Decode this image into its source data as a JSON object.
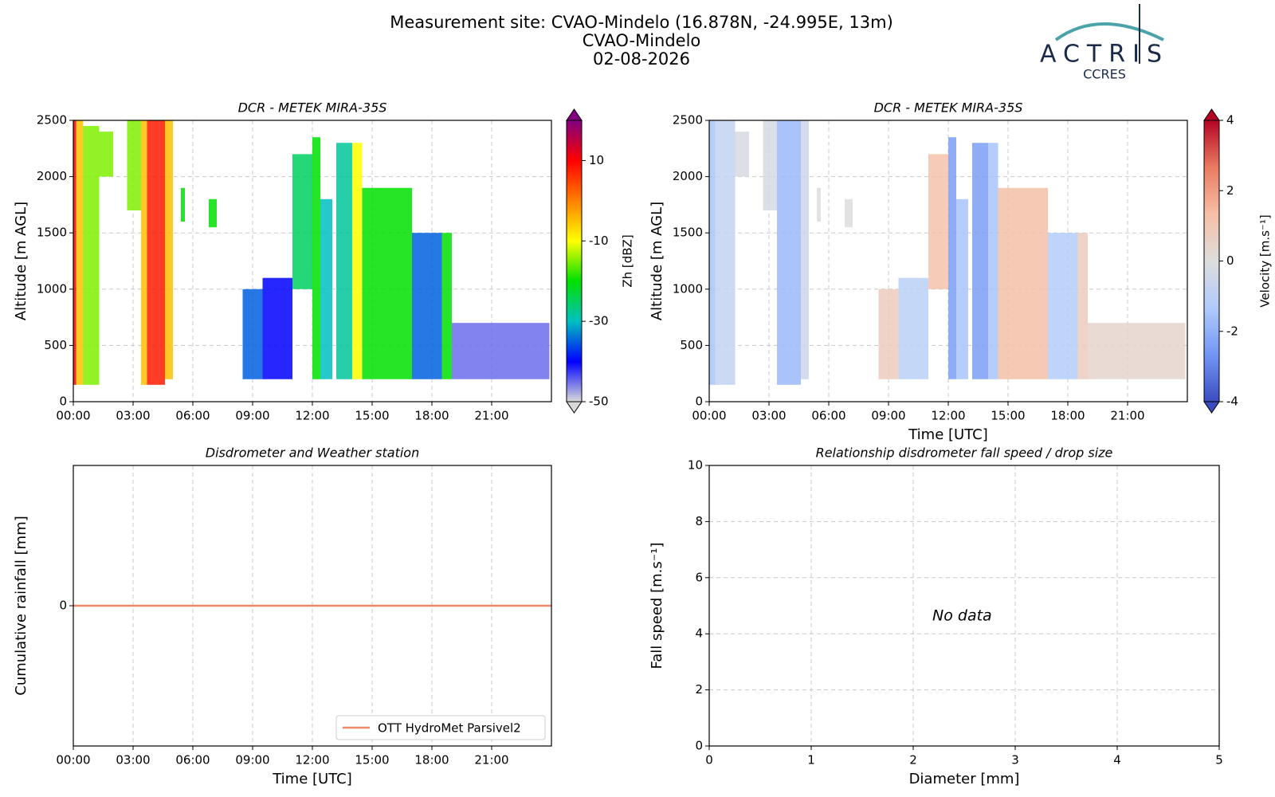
{
  "header": {
    "title": [
      "Measurement site: CVAO-Mindelo (16.878N, -24.995E, 13m)",
      "CVAO-Mindelo",
      "02-08-2026"
    ],
    "logo": "ACTRIS",
    "logo_subtitle": "CCRES"
  },
  "chart_data": [
    {
      "type": "heatmap",
      "title": "DCR - METEK MIRA-35S",
      "y_label": "Altitude [m AGL]",
      "xlim": [
        0,
        24
      ],
      "xticks": [
        {
          "value": 0,
          "label": "00:00"
        },
        {
          "value": 3,
          "label": "03:00"
        },
        {
          "value": 6,
          "label": "06:00"
        },
        {
          "value": 9,
          "label": "09:00"
        },
        {
          "value": 12,
          "label": "12:00"
        },
        {
          "value": 15,
          "label": "15:00"
        },
        {
          "value": 18,
          "label": "18:00"
        },
        {
          "value": 21,
          "label": "21:00"
        }
      ],
      "ylim": [
        0,
        2500
      ],
      "yticks": [
        0,
        500,
        1000,
        1500,
        2000,
        2500
      ],
      "grid": true,
      "colorbar_label": "Zh [dBZ]",
      "zlim": [
        -50,
        20
      ],
      "zticks": [
        -50,
        -30,
        -10,
        10
      ],
      "colormap": [
        "#d9d9d9",
        "#0000ff",
        "#00c0c0",
        "#00e000",
        "#ffff00",
        "#ff8000",
        "#ff0000",
        "#800080"
      ],
      "cells": [
        [
          0,
          0.15,
          150,
          2500,
          10
        ],
        [
          0.15,
          0.5,
          150,
          2500,
          -5
        ],
        [
          0.5,
          1.3,
          150,
          2450,
          -15
        ],
        [
          1.3,
          2,
          2000,
          2400,
          -15
        ],
        [
          2.7,
          3.4,
          1700,
          2500,
          -15
        ],
        [
          3.4,
          3.7,
          150,
          2500,
          -5
        ],
        [
          3.7,
          4.6,
          150,
          2500,
          8
        ],
        [
          4.6,
          5,
          200,
          2500,
          -5
        ],
        [
          5.4,
          5.6,
          1600,
          1900,
          -20
        ],
        [
          6.8,
          7.2,
          1550,
          1800,
          -20
        ],
        [
          8.5,
          9.5,
          200,
          1000,
          -35
        ],
        [
          9.5,
          11,
          200,
          1100,
          -40
        ],
        [
          11,
          12,
          1000,
          2200,
          -25
        ],
        [
          12,
          12.4,
          200,
          2350,
          -20
        ],
        [
          12.4,
          13,
          200,
          1800,
          -30
        ],
        [
          13.2,
          14,
          200,
          2300,
          -28
        ],
        [
          14,
          14.5,
          200,
          2300,
          -10
        ],
        [
          14.5,
          17,
          200,
          1900,
          -20
        ],
        [
          17,
          18.5,
          200,
          1500,
          -35
        ],
        [
          18.5,
          19,
          200,
          1500,
          -20
        ],
        [
          19,
          23.9,
          200,
          700,
          -45
        ]
      ]
    },
    {
      "type": "heatmap",
      "title": "DCR - METEK MIRA-35S",
      "x_label": "Time [UTC]",
      "y_label": "Altitude [m AGL]",
      "xlim": [
        0,
        24
      ],
      "xticks": [
        {
          "value": 0,
          "label": "00:00"
        },
        {
          "value": 3,
          "label": "03:00"
        },
        {
          "value": 6,
          "label": "06:00"
        },
        {
          "value": 9,
          "label": "09:00"
        },
        {
          "value": 12,
          "label": "12:00"
        },
        {
          "value": 15,
          "label": "15:00"
        },
        {
          "value": 18,
          "label": "18:00"
        },
        {
          "value": 21,
          "label": "21:00"
        }
      ],
      "ylim": [
        0,
        2500
      ],
      "yticks": [
        0,
        500,
        1000,
        1500,
        2000,
        2500
      ],
      "grid": true,
      "colorbar_label": "Velocity [m.s⁻¹]",
      "zlim": [
        -4,
        4
      ],
      "zticks": [
        -4,
        -2,
        0,
        2,
        4
      ],
      "colormap": [
        "#3b4cc0",
        "#7396f5",
        "#b0cbfc",
        "#dddddd",
        "#f6bfa6",
        "#ea7b60",
        "#b40426"
      ],
      "cells": [
        [
          0,
          0.3,
          150,
          2500,
          -1.5
        ],
        [
          0.3,
          1.3,
          150,
          2500,
          -0.8
        ],
        [
          1.3,
          2,
          2000,
          2400,
          -0.2
        ],
        [
          2.7,
          3.4,
          1700,
          2500,
          -0.2
        ],
        [
          3.4,
          4.6,
          150,
          2500,
          -1.8
        ],
        [
          4.6,
          5,
          200,
          2500,
          -0.5
        ],
        [
          5.4,
          5.6,
          1600,
          1900,
          0
        ],
        [
          6.8,
          7.2,
          1550,
          1800,
          0
        ],
        [
          8.5,
          9.5,
          200,
          1000,
          0.8
        ],
        [
          9.5,
          11,
          200,
          1100,
          -1
        ],
        [
          11,
          12,
          1000,
          2200,
          1.2
        ],
        [
          12,
          12.4,
          200,
          2350,
          -2.5
        ],
        [
          12.4,
          13,
          200,
          1800,
          -1.5
        ],
        [
          13.2,
          14,
          200,
          2300,
          -2.5
        ],
        [
          14,
          14.5,
          200,
          2300,
          -1.5
        ],
        [
          14.5,
          17,
          200,
          1900,
          1.3
        ],
        [
          17,
          18.5,
          200,
          1500,
          -1.2
        ],
        [
          18.5,
          19,
          200,
          1500,
          0.8
        ],
        [
          19,
          23.9,
          200,
          700,
          0.4
        ]
      ]
    },
    {
      "type": "line",
      "title": "Disdrometer and Weather station",
      "x_label": "Time [UTC]",
      "y_label": "Cumulative rainfall [mm]",
      "xlim": [
        0,
        24
      ],
      "xticks": [
        {
          "value": 0,
          "label": "00:00"
        },
        {
          "value": 3,
          "label": "03:00"
        },
        {
          "value": 6,
          "label": "06:00"
        },
        {
          "value": 9,
          "label": "09:00"
        },
        {
          "value": 12,
          "label": "12:00"
        },
        {
          "value": 15,
          "label": "15:00"
        },
        {
          "value": 18,
          "label": "18:00"
        },
        {
          "value": 21,
          "label": "21:00"
        }
      ],
      "ylim": [
        -1,
        1
      ],
      "yticks": [
        0
      ],
      "grid": true,
      "legend": "lower right",
      "x": [
        0,
        24
      ],
      "series": [
        {
          "name": "OTT HydroMet Parsivel2",
          "color": "#ee8866",
          "values": [
            0,
            0
          ]
        }
      ]
    },
    {
      "type": "scatter",
      "title": "Relationship disdrometer fall speed / drop size",
      "x_label": "Diameter [mm]",
      "y_label": "Fall speed [m.s⁻¹]",
      "xlim": [
        0,
        5
      ],
      "xticks": [
        0,
        1,
        2,
        3,
        4,
        5
      ],
      "ylim": [
        0,
        10
      ],
      "yticks": [
        0,
        2,
        4,
        6,
        8,
        10
      ],
      "grid": true,
      "annotation": "No data",
      "x": [],
      "values": []
    }
  ]
}
